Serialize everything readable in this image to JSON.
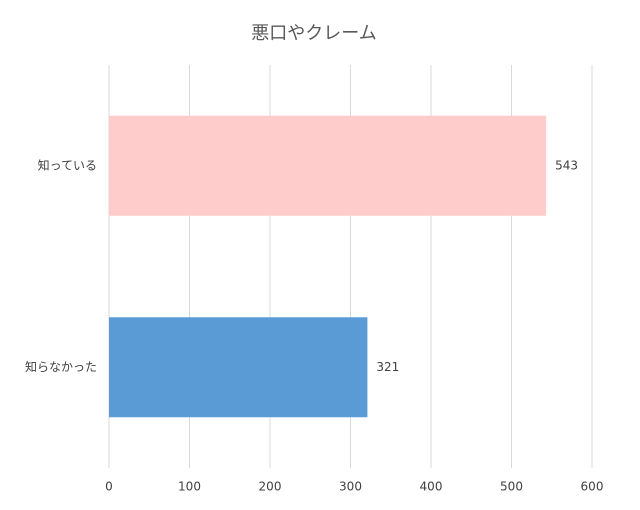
{
  "chart_data": {
    "type": "barh",
    "title": "悪口やクレーム",
    "categories": [
      "知っている",
      "知らなかった"
    ],
    "values": [
      543,
      321
    ],
    "colors": [
      "#ffcccc",
      "#5b9bd5"
    ],
    "xlim": [
      0,
      600
    ],
    "xticks": [
      0,
      100,
      200,
      300,
      400,
      500,
      600
    ],
    "grid": true
  }
}
